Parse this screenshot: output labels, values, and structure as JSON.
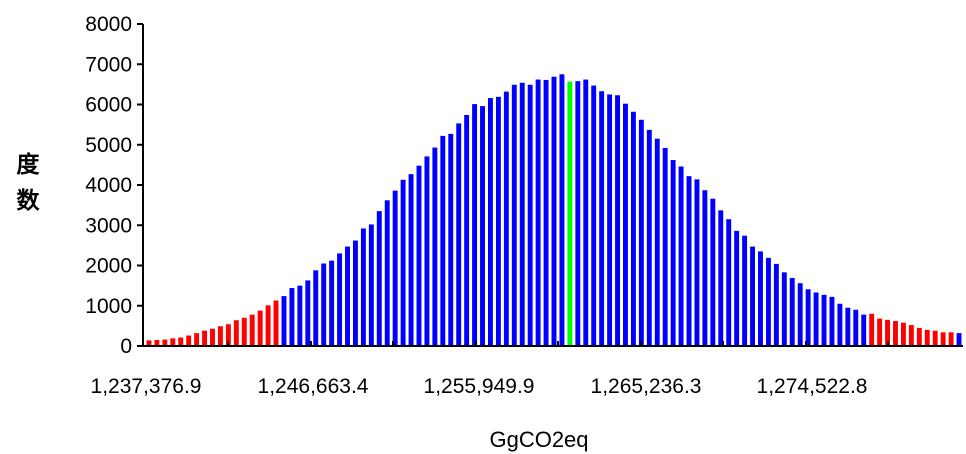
{
  "chart_data": {
    "type": "bar",
    "title": "",
    "xlabel": "GgCO2eq",
    "ylabel": "度数",
    "ylim": [
      0,
      8000
    ],
    "y_ticks": [
      "0",
      "1000",
      "2000",
      "3000",
      "4000",
      "5000",
      "6000",
      "7000",
      "8000"
    ],
    "x_tick_labels": [
      "1,237,376.9",
      "1,246,663.4",
      "1,255,949.9",
      "1,265,236.3",
      "1,274,522.8"
    ],
    "grid": false,
    "legend": "none",
    "colors": {
      "tail": "#ff0000",
      "body": "#0000ff",
      "center": "#00ff00"
    },
    "series": [
      {
        "values": [
          140,
          150,
          160,
          190,
          210,
          260,
          320,
          380,
          430,
          490,
          540,
          640,
          700,
          780,
          880,
          1010,
          1130,
          1240,
          1440,
          1500,
          1630,
          1880,
          2050,
          2120,
          2300,
          2470,
          2620,
          2920,
          3020,
          3350,
          3620,
          3860,
          4130,
          4270,
          4480,
          4710,
          4930,
          5220,
          5270,
          5530,
          5740,
          6010,
          5960,
          6160,
          6190,
          6320,
          6490,
          6540,
          6490,
          6620,
          6610,
          6690,
          6750,
          6570,
          6580,
          6620,
          6470,
          6330,
          6250,
          6230,
          6020,
          5820,
          5620,
          5370,
          5150,
          4920,
          4620,
          4460,
          4220,
          4140,
          3870,
          3660,
          3370,
          3150,
          2860,
          2740,
          2470,
          2350,
          2190,
          2040,
          1830,
          1690,
          1560,
          1410,
          1330,
          1270,
          1220,
          1050,
          950,
          900,
          780,
          800,
          680,
          650,
          620,
          580,
          520,
          450,
          400,
          380,
          340,
          340,
          320
        ],
        "colors": [
          "r",
          "r",
          "r",
          "r",
          "r",
          "r",
          "r",
          "r",
          "r",
          "r",
          "r",
          "r",
          "r",
          "r",
          "r",
          "r",
          "r",
          "b",
          "b",
          "b",
          "b",
          "b",
          "b",
          "b",
          "b",
          "b",
          "b",
          "b",
          "b",
          "b",
          "b",
          "b",
          "b",
          "b",
          "b",
          "b",
          "b",
          "b",
          "b",
          "b",
          "b",
          "b",
          "b",
          "b",
          "b",
          "b",
          "b",
          "b",
          "b",
          "b",
          "b",
          "b",
          "b",
          "g",
          "b",
          "b",
          "b",
          "b",
          "b",
          "b",
          "b",
          "b",
          "b",
          "b",
          "b",
          "b",
          "b",
          "b",
          "b",
          "b",
          "b",
          "b",
          "b",
          "b",
          "b",
          "b",
          "b",
          "b",
          "b",
          "b",
          "b",
          "b",
          "b",
          "b",
          "b",
          "b",
          "b",
          "b",
          "b",
          "b",
          "b",
          "r",
          "r",
          "r",
          "r",
          "r",
          "r",
          "r",
          "r",
          "r",
          "r",
          "r"
        ]
      }
    ]
  }
}
